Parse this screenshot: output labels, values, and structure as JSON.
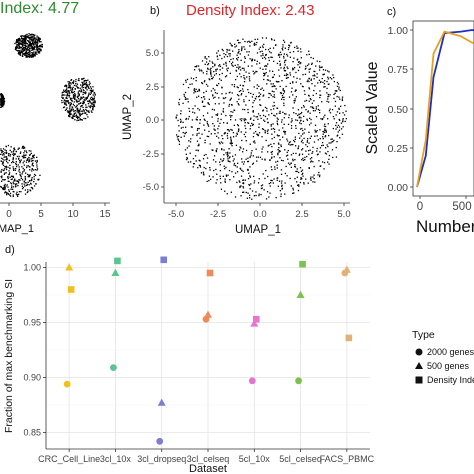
{
  "panel_a": {
    "title": "Index: 4.77",
    "title_color": "#2e8b2e",
    "xlabel": "UMAP_1",
    "x_ticks": [
      "0",
      "5",
      "10",
      "15"
    ]
  },
  "panel_b": {
    "tag": "b)",
    "title": "Density Index: 2.43",
    "title_color": "#e0262b",
    "xlabel": "UMAP_1",
    "ylabel": "UMAP_2",
    "x_ticks": [
      "-5.0",
      "-2.5",
      "0.0",
      "2.5",
      "5.0"
    ],
    "y_ticks": [
      "5.0",
      "2.5",
      "0.0",
      "-2.5",
      "-5.0"
    ]
  },
  "panel_c": {
    "tag": "c)",
    "ylabel": "Scaled Value",
    "xlabel": "Number",
    "y_ticks": [
      "1.00",
      "0.75",
      "0.50",
      "0.25",
      "0.00"
    ],
    "x_ticks": [
      "0",
      "500"
    ]
  },
  "chart_data": [
    {
      "type": "scatter",
      "panel": "d)",
      "title": "",
      "xlabel": "Dataset",
      "ylabel": "Fraction of max benchmarking SI",
      "categories": [
        "CRC_Cell_Line",
        "3cl_10x",
        "3cl_dropseq",
        "3cl_celseq",
        "5cl_10x",
        "5cl_celseq",
        "FACS_PBMC"
      ],
      "y_ticks": [
        "1.00",
        "0.95",
        "0.90",
        "0.85"
      ],
      "ylim": [
        0.835,
        1.005
      ],
      "grid": true,
      "legend": {
        "title": "Type",
        "placement": "right",
        "entries": [
          "2000 genes",
          "500 genes",
          "Density Index"
        ]
      },
      "series": [
        {
          "name": "2000 genes",
          "marker": "circle",
          "values": [
            0.894,
            0.909,
            0.842,
            0.953,
            0.897,
            0.897,
            0.995
          ]
        },
        {
          "name": "500 genes",
          "marker": "triangle",
          "values": [
            1.0,
            0.995,
            0.877,
            0.957,
            0.949,
            0.975,
            0.998
          ]
        },
        {
          "name": "Density Index",
          "marker": "square",
          "values": [
            0.98,
            1.006,
            1.007,
            0.995,
            0.953,
            1.003,
            0.936
          ]
        }
      ],
      "category_colors": [
        "#f2c01e",
        "#5cc48f",
        "#7b7fd0",
        "#ee8a5a",
        "#e774cf",
        "#7dc24d",
        "#e0b277"
      ]
    },
    {
      "type": "line",
      "panel": "c)",
      "ylim": [
        0,
        1.0
      ],
      "series": [
        {
          "name": "",
          "color": "#1f2fc0",
          "x": [
            0,
            80,
            150,
            250,
            400,
            500,
            600,
            700,
            800
          ],
          "values": [
            0.0,
            0.2,
            0.7,
            0.98,
            0.99,
            1.0,
            0.99,
            0.97,
            0.95
          ]
        },
        {
          "name": "",
          "color": "#e8a020",
          "x": [
            0,
            80,
            150,
            250,
            400,
            500,
            600,
            700,
            800
          ],
          "values": [
            0.0,
            0.3,
            0.85,
            0.99,
            0.96,
            0.92,
            0.89,
            0.87,
            0.86
          ]
        }
      ]
    }
  ]
}
